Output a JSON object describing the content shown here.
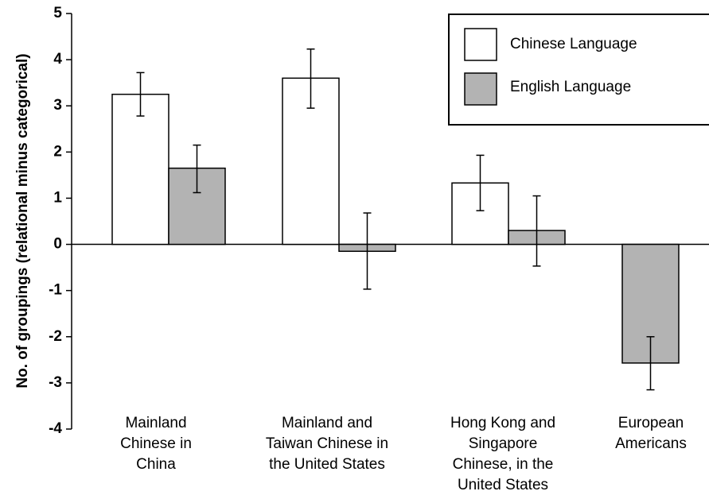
{
  "chart_data": {
    "type": "bar",
    "ylabel": "No. of groupings (relational minus categorical)",
    "ylim": [
      -4,
      5
    ],
    "yticks": [
      "5",
      "4",
      "3",
      "2",
      "1",
      "0",
      "-1",
      "-2",
      "-3",
      "-4"
    ],
    "categories": [
      [
        "Mainland",
        "Chinese in",
        "China"
      ],
      [
        "Mainland and",
        "Taiwan Chinese in",
        "the United States"
      ],
      [
        "Hong Kong and",
        "Singapore",
        "Chinese, in the",
        "United States"
      ],
      [
        "European",
        "Americans"
      ]
    ],
    "series": [
      {
        "name": "Chinese Language",
        "color": "#ffffff",
        "values": [
          3.25,
          3.6,
          1.33,
          null
        ],
        "err_low": [
          2.78,
          2.95,
          0.73,
          null
        ],
        "err_high": [
          3.72,
          4.23,
          1.93,
          null
        ]
      },
      {
        "name": "English Language",
        "color": "#b3b3b3",
        "values": [
          1.65,
          -0.15,
          0.3,
          -2.57
        ],
        "err_low": [
          1.12,
          -0.97,
          -0.47,
          -3.15
        ],
        "err_high": [
          2.15,
          0.68,
          1.05,
          -2.0
        ]
      }
    ],
    "legend_position": "top-right"
  }
}
